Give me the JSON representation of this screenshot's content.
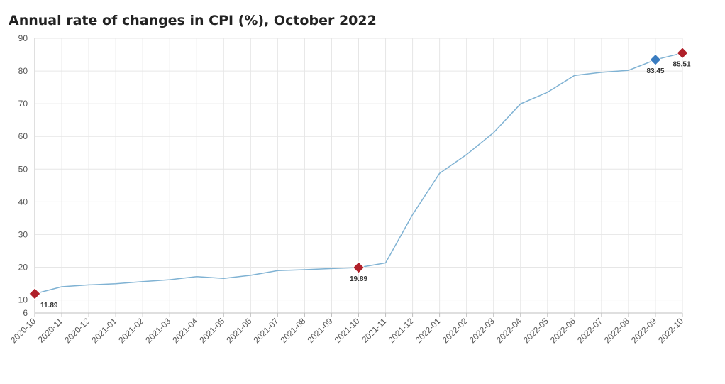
{
  "chart_data": {
    "type": "line",
    "title": "Annual rate of changes in CPI (%), October 2022",
    "xlabel": "",
    "ylabel": "",
    "categories": [
      "2020-10",
      "2020-11",
      "2020-12",
      "2021-01",
      "2021-02",
      "2021-03",
      "2021-04",
      "2021-05",
      "2021-06",
      "2021-07",
      "2021-08",
      "2021-09",
      "2021-10",
      "2021-11",
      "2021-12",
      "2022-01",
      "2022-02",
      "2022-03",
      "2022-04",
      "2022-05",
      "2022-06",
      "2022-07",
      "2022-08",
      "2022-09",
      "2022-10"
    ],
    "series": [
      {
        "values": [
          11.89,
          14.03,
          14.6,
          14.97,
          15.61,
          16.19,
          17.14,
          16.59,
          17.53,
          18.95,
          19.25,
          19.58,
          19.89,
          21.31,
          36.08,
          48.69,
          54.44,
          61.14,
          69.97,
          73.5,
          78.62,
          79.6,
          80.21,
          83.45,
          85.51
        ],
        "color": "#7fb2d3"
      }
    ],
    "highlighted_points": [
      {
        "category": "2020-10",
        "value": 11.89,
        "label": "11.89",
        "color": "#b0202a"
      },
      {
        "category": "2021-10",
        "value": 19.89,
        "label": "19.89",
        "color": "#b0202a"
      },
      {
        "category": "2022-09",
        "value": 83.45,
        "label": "83.45",
        "color": "#3a7cc0"
      },
      {
        "category": "2022-10",
        "value": 85.51,
        "label": "85.51",
        "color": "#b0202a"
      }
    ],
    "y_ticks": [
      6,
      10,
      20,
      30,
      40,
      50,
      60,
      70,
      80,
      90
    ],
    "ylim": [
      6,
      90
    ],
    "grid": true,
    "legend": "none"
  }
}
